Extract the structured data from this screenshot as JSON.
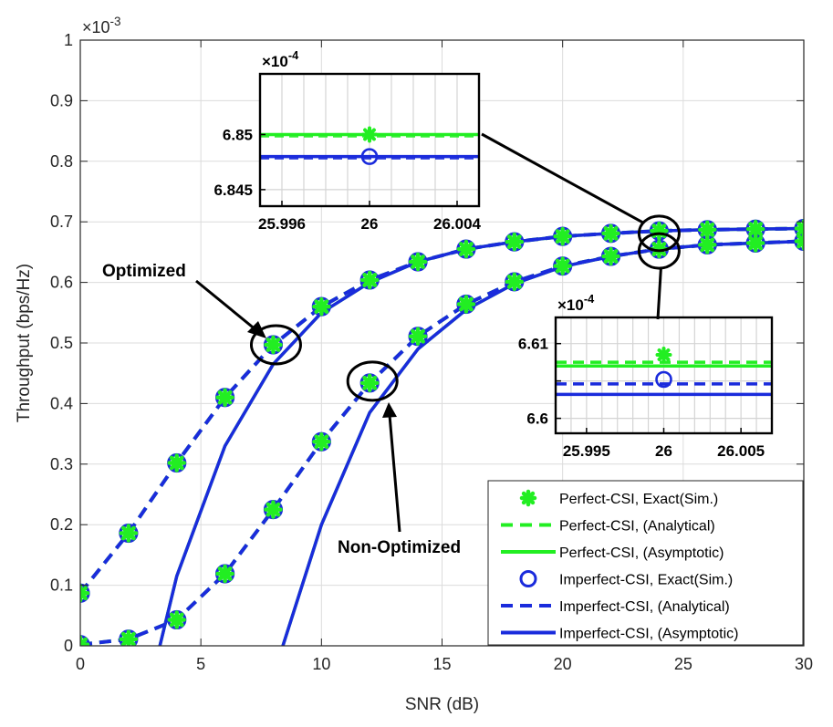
{
  "chart_data": [
    {
      "type": "line",
      "xlabel": "SNR (dB)",
      "ylabel": "Throughput (bps/Hz)",
      "y_exponent": "×10-3",
      "xlim": [
        0,
        30
      ],
      "ylim": [
        0,
        1
      ],
      "xticks": [
        0,
        5,
        10,
        15,
        20,
        25,
        30
      ],
      "yticks": [
        0,
        0.1,
        0.2,
        0.3,
        0.4,
        0.5,
        0.6,
        0.7,
        0.8,
        0.9,
        1
      ],
      "xtick_labels": [
        "0",
        "5",
        "10",
        "15",
        "20",
        "25",
        "30"
      ],
      "ytick_labels": [
        "0",
        "0.1",
        "0.2",
        "0.3",
        "0.4",
        "0.5",
        "0.6",
        "0.7",
        "0.8",
        "0.9",
        "1"
      ],
      "grid": true,
      "legend_position": "bottom-right",
      "series": [
        {
          "name": "Perfect-CSI, Exact(Sim.)",
          "group": "optimized",
          "color": "#22ee22",
          "style": "star",
          "x": [
            0,
            2,
            4,
            6,
            8,
            10,
            12,
            14,
            16,
            18,
            20,
            22,
            24,
            26,
            28,
            30
          ],
          "y": [
            0.087,
            0.186,
            0.302,
            0.41,
            0.497,
            0.56,
            0.604,
            0.634,
            0.655,
            0.667,
            0.676,
            0.681,
            0.685,
            0.687,
            0.688,
            0.689
          ]
        },
        {
          "name": "Perfect-CSI, (Analytical)",
          "group": "optimized",
          "color": "#22ee22",
          "style": "dashed",
          "x": [
            0,
            2,
            4,
            6,
            8,
            10,
            12,
            14,
            16,
            18,
            20,
            22,
            24,
            26,
            28,
            30
          ],
          "y": [
            0.087,
            0.186,
            0.302,
            0.41,
            0.497,
            0.56,
            0.604,
            0.634,
            0.655,
            0.667,
            0.676,
            0.681,
            0.685,
            0.687,
            0.688,
            0.689
          ]
        },
        {
          "name": "Perfect-CSI, (Asymptotic)",
          "group": "optimized",
          "color": "#22ee22",
          "style": "solid",
          "x": [
            3.3,
            4,
            6,
            8,
            10,
            12,
            14,
            16,
            18,
            20,
            22,
            24,
            26,
            28,
            30
          ],
          "y": [
            0,
            0.115,
            0.33,
            0.465,
            0.55,
            0.6,
            0.634,
            0.655,
            0.667,
            0.676,
            0.681,
            0.685,
            0.687,
            0.688,
            0.689
          ]
        },
        {
          "name": "Imperfect-CSI, Exact(Sim.)",
          "group": "optimized",
          "color": "#1a2bdc",
          "style": "circle",
          "x": [
            0,
            2,
            4,
            6,
            8,
            10,
            12,
            14,
            16,
            18,
            20,
            22,
            24,
            26,
            28,
            30
          ],
          "y": [
            0.087,
            0.186,
            0.302,
            0.41,
            0.497,
            0.56,
            0.604,
            0.634,
            0.655,
            0.667,
            0.676,
            0.681,
            0.685,
            0.687,
            0.688,
            0.689
          ]
        },
        {
          "name": "Imperfect-CSI, (Analytical)",
          "group": "optimized",
          "color": "#1a2bdc",
          "style": "dashed",
          "x": [
            0,
            2,
            4,
            6,
            8,
            10,
            12,
            14,
            16,
            18,
            20,
            22,
            24,
            26,
            28,
            30
          ],
          "y": [
            0.087,
            0.186,
            0.302,
            0.41,
            0.497,
            0.56,
            0.604,
            0.634,
            0.655,
            0.667,
            0.676,
            0.681,
            0.685,
            0.687,
            0.688,
            0.689
          ]
        },
        {
          "name": "Imperfect-CSI, (Asymptotic)",
          "group": "optimized",
          "color": "#1a2bdc",
          "style": "solid",
          "x": [
            3.3,
            4,
            6,
            8,
            10,
            12,
            14,
            16,
            18,
            20,
            22,
            24,
            26,
            28,
            30
          ],
          "y": [
            0,
            0.115,
            0.33,
            0.465,
            0.55,
            0.6,
            0.634,
            0.655,
            0.667,
            0.676,
            0.681,
            0.685,
            0.687,
            0.688,
            0.689
          ]
        },
        {
          "name": "Perfect-CSI, Exact(Sim.)",
          "group": "non-optimized",
          "color": "#22ee22",
          "style": "star",
          "x": [
            0,
            2,
            4,
            6,
            8,
            10,
            12,
            14,
            16,
            18,
            20,
            22,
            24,
            26,
            28,
            30
          ],
          "y": [
            0.002,
            0.011,
            0.043,
            0.119,
            0.225,
            0.337,
            0.434,
            0.511,
            0.564,
            0.601,
            0.627,
            0.643,
            0.655,
            0.662,
            0.665,
            0.668
          ]
        },
        {
          "name": "Perfect-CSI, (Analytical)",
          "group": "non-optimized",
          "color": "#22ee22",
          "style": "dashed",
          "x": [
            0,
            2,
            4,
            6,
            8,
            10,
            12,
            14,
            16,
            18,
            20,
            22,
            24,
            26,
            28,
            30
          ],
          "y": [
            0.002,
            0.011,
            0.043,
            0.119,
            0.225,
            0.337,
            0.434,
            0.511,
            0.564,
            0.601,
            0.627,
            0.643,
            0.655,
            0.662,
            0.665,
            0.668
          ]
        },
        {
          "name": "Perfect-CSI, (Asymptotic)",
          "group": "non-optimized",
          "color": "#22ee22",
          "style": "solid",
          "x": [
            8.4,
            10,
            12,
            14,
            16,
            18,
            20,
            22,
            24,
            26,
            28,
            30
          ],
          "y": [
            0,
            0.2,
            0.385,
            0.49,
            0.555,
            0.598,
            0.626,
            0.643,
            0.655,
            0.662,
            0.665,
            0.668
          ]
        },
        {
          "name": "Imperfect-CSI, Exact(Sim.)",
          "group": "non-optimized",
          "color": "#1a2bdc",
          "style": "circle",
          "x": [
            0,
            2,
            4,
            6,
            8,
            10,
            12,
            14,
            16,
            18,
            20,
            22,
            24,
            26,
            28,
            30
          ],
          "y": [
            0.002,
            0.011,
            0.043,
            0.119,
            0.225,
            0.337,
            0.434,
            0.511,
            0.564,
            0.601,
            0.627,
            0.643,
            0.655,
            0.662,
            0.665,
            0.668
          ]
        },
        {
          "name": "Imperfect-CSI, (Analytical)",
          "group": "non-optimized",
          "color": "#1a2bdc",
          "style": "dashed",
          "x": [
            0,
            2,
            4,
            6,
            8,
            10,
            12,
            14,
            16,
            18,
            20,
            22,
            24,
            26,
            28,
            30
          ],
          "y": [
            0.002,
            0.011,
            0.043,
            0.119,
            0.225,
            0.337,
            0.434,
            0.511,
            0.564,
            0.601,
            0.627,
            0.643,
            0.655,
            0.662,
            0.665,
            0.668
          ]
        },
        {
          "name": "Imperfect-CSI, (Asymptotic)",
          "group": "non-optimized",
          "color": "#1a2bdc",
          "style": "solid",
          "x": [
            8.4,
            10,
            12,
            14,
            16,
            18,
            20,
            22,
            24,
            26,
            28,
            30
          ],
          "y": [
            0,
            0.2,
            0.385,
            0.49,
            0.555,
            0.598,
            0.626,
            0.643,
            0.655,
            0.662,
            0.665,
            0.668
          ]
        }
      ],
      "annotations": [
        {
          "text": "Optimized",
          "points_to_x": 8,
          "points_to_y": 0.497
        },
        {
          "text": "Non-Optimized",
          "points_to_x": 12,
          "points_to_y": 0.434
        }
      ]
    },
    {
      "type": "line",
      "role": "inset zoom of Optimized curves at SNR = 26",
      "y_exponent": "×10-4",
      "xlim": [
        25.995,
        26.005
      ],
      "ylim": [
        6.8435,
        6.8555
      ],
      "xticks": [
        25.996,
        26,
        26.004
      ],
      "xtick_labels": [
        "25.996",
        "26",
        "26.004"
      ],
      "yticks": [
        6.845,
        6.85
      ],
      "ytick_labels": [
        "6.845",
        "6.85"
      ],
      "grid": true,
      "series": [
        {
          "name": "Perfect-CSI",
          "color": "#22ee22",
          "style": "solid+dashed",
          "x": [
            25.995,
            26.005
          ],
          "y": [
            6.85,
            6.85
          ]
        },
        {
          "name": "Perfect-CSI, Exact(Sim.)",
          "color": "#22ee22",
          "style": "star",
          "x": [
            26
          ],
          "y": [
            6.85
          ]
        },
        {
          "name": "Imperfect-CSI",
          "color": "#1a2bdc",
          "style": "solid+dashed",
          "x": [
            25.995,
            26.005
          ],
          "y": [
            6.848,
            6.848
          ]
        },
        {
          "name": "Imperfect-CSI, Exact(Sim.)",
          "color": "#1a2bdc",
          "style": "circle",
          "x": [
            26
          ],
          "y": [
            6.848
          ]
        }
      ]
    },
    {
      "type": "line",
      "role": "inset zoom of Non-Optimized curves at SNR = 26",
      "y_exponent": "×10-4",
      "xlim": [
        25.993,
        26.007
      ],
      "ylim": [
        6.598,
        6.6135
      ],
      "xticks": [
        25.995,
        26,
        26.005
      ],
      "xtick_labels": [
        "25.995",
        "26",
        "26.005"
      ],
      "yticks": [
        6.6,
        6.605,
        6.61
      ],
      "ytick_labels": [
        "6.6",
        "",
        "6.61"
      ],
      "grid": true,
      "series": [
        {
          "name": "Perfect-CSI, (Analytical)",
          "color": "#22ee22",
          "style": "dashed",
          "x": [
            25.993,
            26.007
          ],
          "y": [
            6.6075,
            6.6075
          ]
        },
        {
          "name": "Perfect-CSI, (Asymptotic)",
          "color": "#22ee22",
          "style": "solid",
          "x": [
            25.993,
            26.007
          ],
          "y": [
            6.607,
            6.607
          ]
        },
        {
          "name": "Perfect-CSI, Exact(Sim.)",
          "color": "#22ee22",
          "style": "star",
          "x": [
            26
          ],
          "y": [
            6.6085
          ]
        },
        {
          "name": "Imperfect-CSI, (Analytical)",
          "color": "#1a2bdc",
          "style": "dashed",
          "x": [
            25.993,
            26.007
          ],
          "y": [
            6.6046,
            6.6046
          ]
        },
        {
          "name": "Imperfect-CSI, (Asymptotic)",
          "color": "#1a2bdc",
          "style": "solid",
          "x": [
            25.993,
            26.007
          ],
          "y": [
            6.6032,
            6.6032
          ]
        },
        {
          "name": "Imperfect-CSI, Exact(Sim.)",
          "color": "#1a2bdc",
          "style": "circle",
          "x": [
            26
          ],
          "y": [
            6.6052
          ]
        }
      ]
    }
  ],
  "legend": [
    {
      "label": "Perfect-CSI, Exact(Sim.)",
      "style": "star",
      "color": "#22ee22"
    },
    {
      "label": "Perfect-CSI, (Analytical)",
      "style": "dashed",
      "color": "#22ee22"
    },
    {
      "label": "Perfect-CSI, (Asymptotic)",
      "style": "solid",
      "color": "#22ee22"
    },
    {
      "label": "Imperfect-CSI, Exact(Sim.)",
      "style": "circle",
      "color": "#1a2bdc"
    },
    {
      "label": "Imperfect-CSI, (Analytical)",
      "style": "dashed",
      "color": "#1a2bdc"
    },
    {
      "label": "Imperfect-CSI, (Asymptotic)",
      "style": "solid",
      "color": "#1a2bdc"
    }
  ]
}
